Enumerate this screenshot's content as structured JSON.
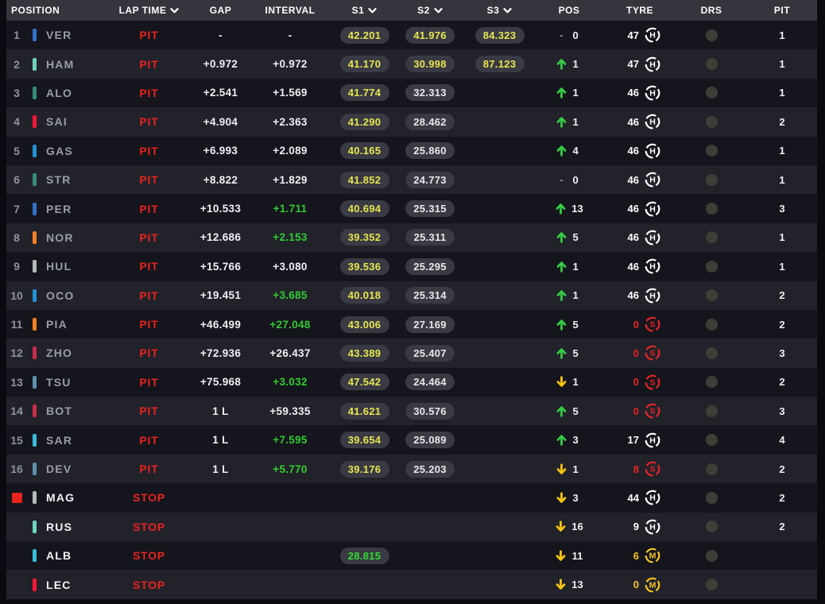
{
  "header": {
    "columns": [
      {
        "label": "POSITION",
        "sortable": false
      },
      {
        "label": "LAP TIME",
        "sortable": true
      },
      {
        "label": "GAP",
        "sortable": false
      },
      {
        "label": "INTERVAL",
        "sortable": false
      },
      {
        "label": "S1",
        "sortable": true
      },
      {
        "label": "S2",
        "sortable": true
      },
      {
        "label": "S3",
        "sortable": true
      },
      {
        "label": "POS",
        "sortable": false
      },
      {
        "label": "TYRE",
        "sortable": false
      },
      {
        "label": "DRS",
        "sortable": false
      },
      {
        "label": "PIT",
        "sortable": false
      }
    ]
  },
  "colors": {
    "header_bg": "#35353d",
    "row_odd_bg": "#15151d",
    "row_even_bg": "#22222b",
    "pit_red": "#e8231d",
    "interval_green": "#30cb30",
    "sector_yellow": "#e7e54f",
    "sector_white": "#e8e8ea",
    "sector_green": "#31dd31",
    "arrow_up_green": "#35cc44",
    "arrow_down_yellow": "#f5c50f",
    "drs_inactive": "#3e3e37",
    "compounds": {
      "H": "#ffffff",
      "S": "#e32526",
      "M": "#f7c41e"
    }
  },
  "rows": [
    {
      "pos": "1",
      "driver": "VER",
      "team_color": "#3671C6",
      "status": "PIT",
      "gap": "-",
      "interval": "-",
      "interval_best": false,
      "s1": "42.201",
      "s1_style": "yellow",
      "s2": "41.976",
      "s2_style": "yellow",
      "s3": "84.323",
      "s3_style": "yellow",
      "pos_change_dir": "same",
      "pos_change": "0",
      "tyre_age": "47",
      "tyre_compound": "H",
      "drs_active": false,
      "pit": "1",
      "retired": false,
      "red_flag": false
    },
    {
      "pos": "2",
      "driver": "HAM",
      "team_color": "#6CD3BF",
      "status": "PIT",
      "gap": "+0.972",
      "interval": "+0.972",
      "interval_best": false,
      "s1": "41.170",
      "s1_style": "yellow",
      "s2": "30.998",
      "s2_style": "yellow",
      "s3": "87.123",
      "s3_style": "yellow",
      "pos_change_dir": "up",
      "pos_change": "1",
      "tyre_age": "47",
      "tyre_compound": "H",
      "drs_active": false,
      "pit": "1",
      "retired": false,
      "red_flag": false
    },
    {
      "pos": "3",
      "driver": "ALO",
      "team_color": "#358C75",
      "status": "PIT",
      "gap": "+2.541",
      "interval": "+1.569",
      "interval_best": false,
      "s1": "41.774",
      "s1_style": "yellow",
      "s2": "32.313",
      "s2_style": "white",
      "s3": "",
      "s3_style": "",
      "pos_change_dir": "up",
      "pos_change": "1",
      "tyre_age": "46",
      "tyre_compound": "H",
      "drs_active": false,
      "pit": "1",
      "retired": false,
      "red_flag": false
    },
    {
      "pos": "4",
      "driver": "SAI",
      "team_color": "#F91536",
      "status": "PIT",
      "gap": "+4.904",
      "interval": "+2.363",
      "interval_best": false,
      "s1": "41.290",
      "s1_style": "yellow",
      "s2": "28.462",
      "s2_style": "white",
      "s3": "",
      "s3_style": "",
      "pos_change_dir": "up",
      "pos_change": "1",
      "tyre_age": "46",
      "tyre_compound": "H",
      "drs_active": false,
      "pit": "2",
      "retired": false,
      "red_flag": false
    },
    {
      "pos": "5",
      "driver": "GAS",
      "team_color": "#2293D1",
      "status": "PIT",
      "gap": "+6.993",
      "interval": "+2.089",
      "interval_best": false,
      "s1": "40.165",
      "s1_style": "yellow",
      "s2": "25.860",
      "s2_style": "white",
      "s3": "",
      "s3_style": "",
      "pos_change_dir": "up",
      "pos_change": "4",
      "tyre_age": "46",
      "tyre_compound": "H",
      "drs_active": false,
      "pit": "1",
      "retired": false,
      "red_flag": false
    },
    {
      "pos": "6",
      "driver": "STR",
      "team_color": "#358C75",
      "status": "PIT",
      "gap": "+8.822",
      "interval": "+1.829",
      "interval_best": false,
      "s1": "41.852",
      "s1_style": "yellow",
      "s2": "24.773",
      "s2_style": "white",
      "s3": "",
      "s3_style": "",
      "pos_change_dir": "same",
      "pos_change": "0",
      "tyre_age": "46",
      "tyre_compound": "H",
      "drs_active": false,
      "pit": "1",
      "retired": false,
      "red_flag": false
    },
    {
      "pos": "7",
      "driver": "PER",
      "team_color": "#3671C6",
      "status": "PIT",
      "gap": "+10.533",
      "interval": "+1.711",
      "interval_best": true,
      "s1": "40.694",
      "s1_style": "yellow",
      "s2": "25.315",
      "s2_style": "white",
      "s3": "",
      "s3_style": "",
      "pos_change_dir": "up",
      "pos_change": "13",
      "tyre_age": "46",
      "tyre_compound": "H",
      "drs_active": false,
      "pit": "3",
      "retired": false,
      "red_flag": false
    },
    {
      "pos": "8",
      "driver": "NOR",
      "team_color": "#F58020",
      "status": "PIT",
      "gap": "+12.686",
      "interval": "+2.153",
      "interval_best": true,
      "s1": "39.352",
      "s1_style": "yellow",
      "s2": "25.311",
      "s2_style": "white",
      "s3": "",
      "s3_style": "",
      "pos_change_dir": "up",
      "pos_change": "5",
      "tyre_age": "46",
      "tyre_compound": "H",
      "drs_active": false,
      "pit": "1",
      "retired": false,
      "red_flag": false
    },
    {
      "pos": "9",
      "driver": "HUL",
      "team_color": "#B6BABD",
      "status": "PIT",
      "gap": "+15.766",
      "interval": "+3.080",
      "interval_best": false,
      "s1": "39.536",
      "s1_style": "yellow",
      "s2": "25.295",
      "s2_style": "white",
      "s3": "",
      "s3_style": "",
      "pos_change_dir": "up",
      "pos_change": "1",
      "tyre_age": "46",
      "tyre_compound": "H",
      "drs_active": false,
      "pit": "1",
      "retired": false,
      "red_flag": false
    },
    {
      "pos": "10",
      "driver": "OCO",
      "team_color": "#2293D1",
      "status": "PIT",
      "gap": "+19.451",
      "interval": "+3.685",
      "interval_best": true,
      "s1": "40.018",
      "s1_style": "yellow",
      "s2": "25.314",
      "s2_style": "white",
      "s3": "",
      "s3_style": "",
      "pos_change_dir": "up",
      "pos_change": "1",
      "tyre_age": "46",
      "tyre_compound": "H",
      "drs_active": false,
      "pit": "2",
      "retired": false,
      "red_flag": false
    },
    {
      "pos": "11",
      "driver": "PIA",
      "team_color": "#F58020",
      "status": "PIT",
      "gap": "+46.499",
      "interval": "+27.048",
      "interval_best": true,
      "s1": "43.006",
      "s1_style": "yellow",
      "s2": "27.169",
      "s2_style": "white",
      "s3": "",
      "s3_style": "",
      "pos_change_dir": "up",
      "pos_change": "5",
      "tyre_age": "0",
      "tyre_compound": "S",
      "drs_active": false,
      "pit": "2",
      "retired": false,
      "red_flag": false
    },
    {
      "pos": "12",
      "driver": "ZHO",
      "team_color": "#C92D4B",
      "status": "PIT",
      "gap": "+72.936",
      "interval": "+26.437",
      "interval_best": false,
      "s1": "43.389",
      "s1_style": "yellow",
      "s2": "25.407",
      "s2_style": "white",
      "s3": "",
      "s3_style": "",
      "pos_change_dir": "up",
      "pos_change": "5",
      "tyre_age": "0",
      "tyre_compound": "S",
      "drs_active": false,
      "pit": "3",
      "retired": false,
      "red_flag": false
    },
    {
      "pos": "13",
      "driver": "TSU",
      "team_color": "#5E8FAA",
      "status": "PIT",
      "gap": "+75.968",
      "interval": "+3.032",
      "interval_best": true,
      "s1": "47.542",
      "s1_style": "yellow",
      "s2": "24.464",
      "s2_style": "white",
      "s3": "",
      "s3_style": "",
      "pos_change_dir": "down",
      "pos_change": "1",
      "tyre_age": "0",
      "tyre_compound": "S",
      "drs_active": false,
      "pit": "2",
      "retired": false,
      "red_flag": false
    },
    {
      "pos": "14",
      "driver": "BOT",
      "team_color": "#C92D4B",
      "status": "PIT",
      "gap": "1 L",
      "interval": "+59.335",
      "interval_best": false,
      "s1": "41.621",
      "s1_style": "yellow",
      "s2": "30.576",
      "s2_style": "white",
      "s3": "",
      "s3_style": "",
      "pos_change_dir": "up",
      "pos_change": "5",
      "tyre_age": "0",
      "tyre_compound": "S",
      "drs_active": false,
      "pit": "3",
      "retired": false,
      "red_flag": false
    },
    {
      "pos": "15",
      "driver": "SAR",
      "team_color": "#37BEDD",
      "status": "PIT",
      "gap": "1 L",
      "interval": "+7.595",
      "interval_best": true,
      "s1": "39.654",
      "s1_style": "yellow",
      "s2": "25.089",
      "s2_style": "white",
      "s3": "",
      "s3_style": "",
      "pos_change_dir": "up",
      "pos_change": "3",
      "tyre_age": "17",
      "tyre_compound": "H",
      "drs_active": false,
      "pit": "4",
      "retired": false,
      "red_flag": false
    },
    {
      "pos": "16",
      "driver": "DEV",
      "team_color": "#5E8FAA",
      "status": "PIT",
      "gap": "1 L",
      "interval": "+5.770",
      "interval_best": true,
      "s1": "39.176",
      "s1_style": "yellow",
      "s2": "25.203",
      "s2_style": "white",
      "s3": "",
      "s3_style": "",
      "pos_change_dir": "down",
      "pos_change": "1",
      "tyre_age": "8",
      "tyre_compound": "S",
      "drs_active": false,
      "pit": "2",
      "retired": false,
      "red_flag": false
    },
    {
      "pos": "",
      "driver": "MAG",
      "team_color": "#B6BABD",
      "status": "STOP",
      "gap": "",
      "interval": "",
      "interval_best": false,
      "s1": "",
      "s1_style": "",
      "s2": "",
      "s2_style": "",
      "s3": "",
      "s3_style": "",
      "pos_change_dir": "down",
      "pos_change": "3",
      "tyre_age": "44",
      "tyre_compound": "H",
      "drs_active": false,
      "pit": "2",
      "retired": true,
      "red_flag": true
    },
    {
      "pos": "",
      "driver": "RUS",
      "team_color": "#6CD3BF",
      "status": "STOP",
      "gap": "",
      "interval": "",
      "interval_best": false,
      "s1": "",
      "s1_style": "",
      "s2": "",
      "s2_style": "",
      "s3": "",
      "s3_style": "",
      "pos_change_dir": "down",
      "pos_change": "16",
      "tyre_age": "9",
      "tyre_compound": "H",
      "drs_active": false,
      "pit": "2",
      "retired": true,
      "red_flag": false
    },
    {
      "pos": "",
      "driver": "ALB",
      "team_color": "#37BEDD",
      "status": "STOP",
      "gap": "",
      "interval": "",
      "interval_best": false,
      "s1": "28.815",
      "s1_style": "green",
      "s2": "",
      "s2_style": "",
      "s3": "",
      "s3_style": "",
      "pos_change_dir": "down",
      "pos_change": "11",
      "tyre_age": "6",
      "tyre_compound": "M",
      "drs_active": false,
      "pit": "",
      "retired": true,
      "red_flag": false
    },
    {
      "pos": "",
      "driver": "LEC",
      "team_color": "#F91536",
      "status": "STOP",
      "gap": "",
      "interval": "",
      "interval_best": false,
      "s1": "",
      "s1_style": "",
      "s2": "",
      "s2_style": "",
      "s3": "",
      "s3_style": "",
      "pos_change_dir": "down",
      "pos_change": "13",
      "tyre_age": "0",
      "tyre_compound": "M",
      "drs_active": false,
      "pit": "",
      "retired": true,
      "red_flag": false
    }
  ]
}
